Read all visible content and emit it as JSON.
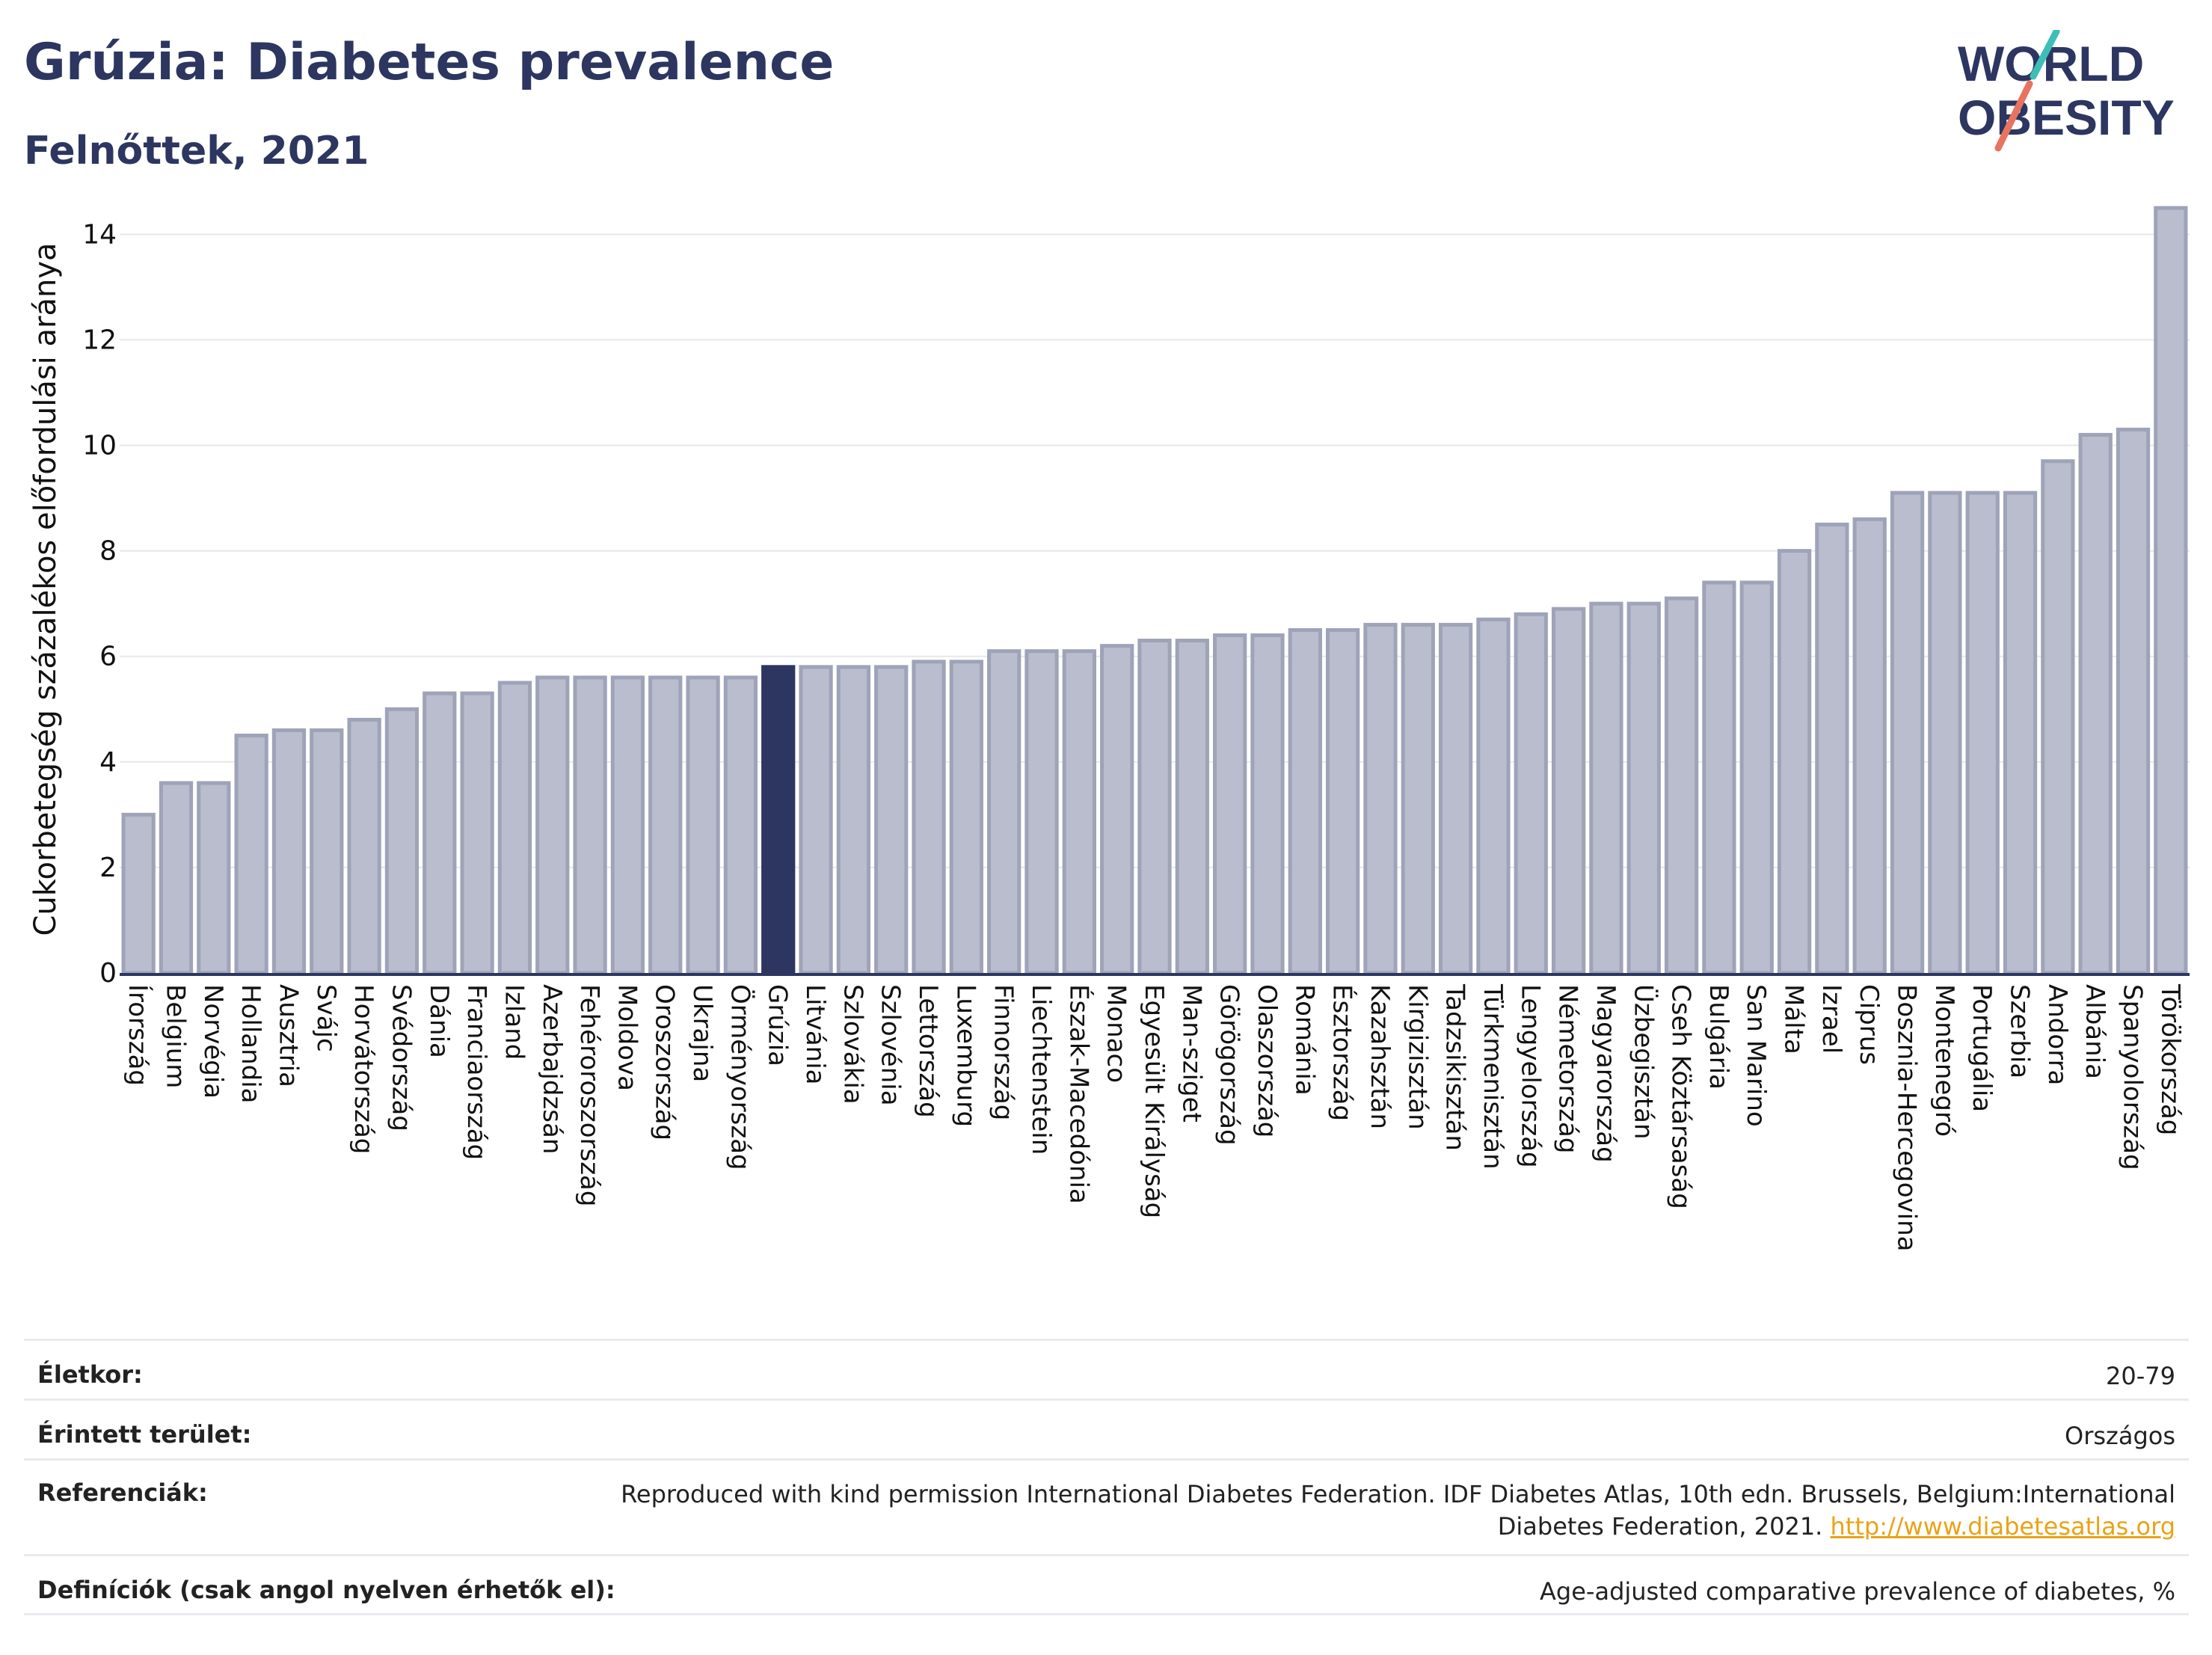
{
  "header": {
    "title": "Grúzia: Diabetes prevalence",
    "subtitle": "Felnőttek, 2021",
    "logo_line1": "WORLD",
    "logo_line2": "OBESITY"
  },
  "colors": {
    "bar": "#b9bdcd",
    "bar_edge": "#9ea3b8",
    "highlight": "#2c3660",
    "title": "#2c3660",
    "logo_teal": "#3dbfb8",
    "logo_coral": "#e8735f"
  },
  "chart_data": {
    "type": "bar",
    "ylabel": "Cukorbetegség százalékos előfordulási aránya",
    "ylim": [
      0,
      14.6
    ],
    "yticks": [
      0,
      2,
      4,
      6,
      8,
      10,
      12,
      14
    ],
    "grid": true,
    "highlight": "Grúzia",
    "categories": [
      "Írország",
      "Belgium",
      "Norvégia",
      "Hollandia",
      "Ausztria",
      "Svájc",
      "Horvátország",
      "Svédország",
      "Dánia",
      "Franciaország",
      "Izland",
      "Azerbajdzsán",
      "Fehéroroszország",
      "Moldova",
      "Oroszország",
      "Ukrajna",
      "Örményország",
      "Grúzia",
      "Litvánia",
      "Szlovákia",
      "Szlovénia",
      "Lettország",
      "Luxemburg",
      "Finnország",
      "Liechtenstein",
      "Észak-Macedónia",
      "Monaco",
      "Egyesült Királyság",
      "Man-sziget",
      "Görögország",
      "Olaszország",
      "Románia",
      "Észtország",
      "Kazahsztán",
      "Kirgizisztán",
      "Tadzsikisztán",
      "Türkmenisztán",
      "Lengyelország",
      "Németország",
      "Magyarország",
      "Üzbegisztán",
      "Cseh Köztársaság",
      "Bulgária",
      "San Marino",
      "Málta",
      "Izrael",
      "Ciprus",
      "Bosznia-Hercegovina",
      "Montenegró",
      "Portugália",
      "Szerbia",
      "Andorra",
      "Albánia",
      "Spanyolország",
      "Törökország"
    ],
    "values": [
      3.0,
      3.6,
      3.6,
      4.5,
      4.6,
      4.6,
      4.8,
      5.0,
      5.3,
      5.3,
      5.5,
      5.6,
      5.6,
      5.6,
      5.6,
      5.6,
      5.6,
      5.8,
      5.8,
      5.8,
      5.8,
      5.9,
      5.9,
      6.1,
      6.1,
      6.1,
      6.2,
      6.3,
      6.3,
      6.4,
      6.4,
      6.5,
      6.5,
      6.6,
      6.6,
      6.6,
      6.7,
      6.8,
      6.9,
      7.0,
      7.0,
      7.1,
      7.4,
      7.4,
      8.0,
      8.5,
      8.6,
      9.1,
      9.1,
      9.1,
      9.1,
      9.7,
      10.2,
      10.3,
      14.5
    ]
  },
  "info": {
    "age_label": "Életkor:",
    "age_value": "20-79",
    "area_label": "Érintett terület:",
    "area_value": "Országos",
    "ref_label": "Referenciák:",
    "ref_value_line1": "Reproduced with kind permission International Diabetes Federation.  IDF Diabetes Atlas, 10th edn. Brussels, Belgium:International",
    "ref_value_line2": "Diabetes Federation, 2021. ",
    "ref_link": "http://www.diabetesatlas.org",
    "def_label": "Definíciók (csak angol nyelven érhetők el):",
    "def_value": "Age-adjusted comparative prevalence of diabetes, %"
  }
}
